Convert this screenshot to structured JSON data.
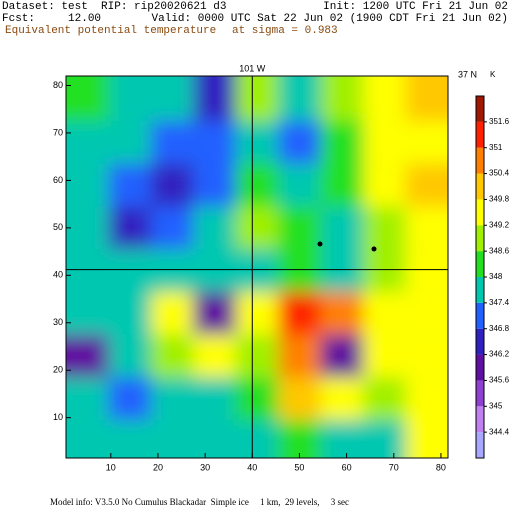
{
  "chart_data": {
    "type": "heatmap",
    "header": [
      "Dataset: test  RIP: rip20020621 d3",
      "Init: 1200 UTC Fri 21 Jun 02",
      "Fcst:     12.00",
      "Valid: 0000 UTC Sat 22 Jun 02 (1900 CDT Fri 21 Jun 02)"
    ],
    "title": "Equivalent potential temperature",
    "subtitle": "at sigma = 0.983",
    "footer": "Model info: V3.5.0 No Cumulus Blackadar  Simple ice     1 km,  29 levels,     3 sec",
    "x": [
      5,
      14,
      23,
      32,
      41,
      50,
      59,
      68,
      77
    ],
    "y": [
      77,
      68,
      59,
      50,
      41,
      32,
      23,
      14,
      5
    ],
    "values": [
      [
        348,
        347.6,
        347.4,
        346.4,
        348.8,
        347.6,
        348.8,
        349.6,
        349.8
      ],
      [
        347.6,
        347.4,
        346.8,
        346.8,
        347.6,
        346.8,
        348.2,
        349.4,
        349.6
      ],
      [
        347.6,
        347.2,
        346.4,
        347.2,
        348.4,
        347.6,
        348.4,
        349.4,
        349.8
      ],
      [
        347.6,
        346.6,
        347.2,
        347.6,
        348.6,
        348.4,
        347.8,
        349,
        349.4
      ],
      [
        347.6,
        347.4,
        347.6,
        347.6,
        347.8,
        348.4,
        347.6,
        348.6,
        349.2
      ],
      [
        347.6,
        347.8,
        349.2,
        345.8,
        349.4,
        351,
        350.6,
        349.6,
        349.4
      ],
      [
        346,
        347.4,
        349,
        349.4,
        348.6,
        350.6,
        345.8,
        349.4,
        349.6
      ],
      [
        347.6,
        347.2,
        347.8,
        347.6,
        348.4,
        350.2,
        349.2,
        348.6,
        349.4
      ],
      [
        347.6,
        347.6,
        347.6,
        347.4,
        347.6,
        348.4,
        347.8,
        347.8,
        349.2
      ]
    ],
    "xlim": [
      0.5,
      81.5
    ],
    "ylim": [
      1.5,
      82
    ],
    "xticks": [
      10,
      20,
      30,
      40,
      50,
      60,
      70,
      80
    ],
    "yticks": [
      10,
      20,
      30,
      40,
      50,
      60,
      70,
      80
    ],
    "annotations": [
      {
        "text": "101 W",
        "x": 40
      },
      {
        "text": "37 N",
        "y": 41.2
      }
    ],
    "colorbar": {
      "unit": "K",
      "ticks": [
        344.4,
        345,
        345.6,
        346.2,
        346.8,
        347.4,
        348,
        348.6,
        349.2,
        349.8,
        350.4,
        351,
        351.6
      ],
      "colors": [
        "#a8a8ff",
        "#c080f0",
        "#9040d0",
        "#6010a0",
        "#3020c0",
        "#2060ff",
        "#00c8b0",
        "#20e020",
        "#a0f000",
        "#ffff00",
        "#ffc800",
        "#ff8000",
        "#ff2000",
        "#a01800"
      ]
    }
  }
}
